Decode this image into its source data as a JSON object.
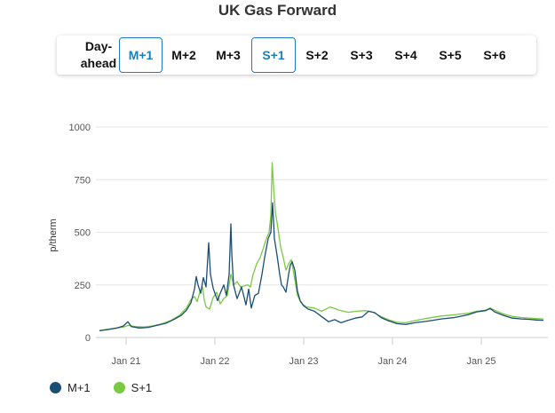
{
  "title": "UK Gas Forward",
  "tabs": [
    {
      "label": "Day-\nahead",
      "active": false
    },
    {
      "label": "M+1",
      "active": true
    },
    {
      "label": "M+2",
      "active": false
    },
    {
      "label": "M+3",
      "active": false
    },
    {
      "label": "S+1",
      "active": true
    },
    {
      "label": "S+2",
      "active": false
    },
    {
      "label": "S+3",
      "active": false
    },
    {
      "label": "S+4",
      "active": false
    },
    {
      "label": "S+5",
      "active": false
    },
    {
      "label": "S+6",
      "active": false
    }
  ],
  "colors": {
    "m1": "#1c4e73",
    "s1": "#7ac943",
    "accent": "#1a7fb8"
  },
  "chart_data": {
    "type": "line",
    "title": "UK Gas Forward",
    "ylabel": "p/therm",
    "xlabel": "",
    "ylim": [
      0,
      1000
    ],
    "yticks": [
      0,
      250,
      500,
      750,
      1000
    ],
    "xlim": [
      2020.66,
      2025.75
    ],
    "xticks": [
      {
        "value": 2021.0,
        "label": "Jan 21"
      },
      {
        "value": 2022.0,
        "label": "Jan 22"
      },
      {
        "value": 2023.0,
        "label": "Jan 23"
      },
      {
        "value": 2024.0,
        "label": "Jan 24"
      },
      {
        "value": 2025.0,
        "label": "Jan 25"
      }
    ],
    "grid": true,
    "legend_position": "bottom-left",
    "series": [
      {
        "name": "M+1",
        "color": "#1c4e73",
        "points": [
          [
            2020.7,
            32
          ],
          [
            2020.8,
            38
          ],
          [
            2020.9,
            45
          ],
          [
            2020.97,
            55
          ],
          [
            2021.02,
            75
          ],
          [
            2021.06,
            52
          ],
          [
            2021.15,
            45
          ],
          [
            2021.25,
            48
          ],
          [
            2021.35,
            58
          ],
          [
            2021.45,
            68
          ],
          [
            2021.55,
            88
          ],
          [
            2021.62,
            105
          ],
          [
            2021.68,
            130
          ],
          [
            2021.73,
            165
          ],
          [
            2021.77,
            230
          ],
          [
            2021.79,
            290
          ],
          [
            2021.81,
            250
          ],
          [
            2021.84,
            210
          ],
          [
            2021.87,
            285
          ],
          [
            2021.9,
            240
          ],
          [
            2021.93,
            450
          ],
          [
            2021.95,
            300
          ],
          [
            2021.98,
            235
          ],
          [
            2022.0,
            210
          ],
          [
            2022.03,
            175
          ],
          [
            2022.06,
            210
          ],
          [
            2022.1,
            250
          ],
          [
            2022.13,
            200
          ],
          [
            2022.16,
            300
          ],
          [
            2022.18,
            540
          ],
          [
            2022.19,
            400
          ],
          [
            2022.21,
            250
          ],
          [
            2022.25,
            185
          ],
          [
            2022.3,
            240
          ],
          [
            2022.35,
            155
          ],
          [
            2022.38,
            230
          ],
          [
            2022.41,
            140
          ],
          [
            2022.45,
            200
          ],
          [
            2022.49,
            210
          ],
          [
            2022.53,
            300
          ],
          [
            2022.56,
            380
          ],
          [
            2022.6,
            470
          ],
          [
            2022.63,
            500
          ],
          [
            2022.65,
            640
          ],
          [
            2022.67,
            470
          ],
          [
            2022.7,
            390
          ],
          [
            2022.73,
            300
          ],
          [
            2022.75,
            250
          ],
          [
            2022.77,
            240
          ],
          [
            2022.8,
            215
          ],
          [
            2022.83,
            300
          ],
          [
            2022.85,
            345
          ],
          [
            2022.87,
            360
          ],
          [
            2022.9,
            320
          ],
          [
            2022.93,
            220
          ],
          [
            2022.96,
            175
          ],
          [
            2023.0,
            150
          ],
          [
            2023.05,
            135
          ],
          [
            2023.12,
            125
          ],
          [
            2023.2,
            100
          ],
          [
            2023.28,
            75
          ],
          [
            2023.35,
            85
          ],
          [
            2023.42,
            70
          ],
          [
            2023.5,
            82
          ],
          [
            2023.58,
            92
          ],
          [
            2023.66,
            98
          ],
          [
            2023.73,
            125
          ],
          [
            2023.8,
            118
          ],
          [
            2023.87,
            95
          ],
          [
            2023.95,
            80
          ],
          [
            2024.05,
            66
          ],
          [
            2024.15,
            62
          ],
          [
            2024.25,
            70
          ],
          [
            2024.4,
            78
          ],
          [
            2024.55,
            88
          ],
          [
            2024.7,
            95
          ],
          [
            2024.85,
            108
          ],
          [
            2024.95,
            122
          ],
          [
            2025.05,
            128
          ],
          [
            2025.1,
            138
          ],
          [
            2025.15,
            122
          ],
          [
            2025.25,
            105
          ],
          [
            2025.35,
            92
          ],
          [
            2025.45,
            88
          ],
          [
            2025.55,
            86
          ],
          [
            2025.62,
            83
          ],
          [
            2025.7,
            82
          ]
        ]
      },
      {
        "name": "S+1",
        "color": "#7ac943",
        "points": [
          [
            2020.7,
            33
          ],
          [
            2020.8,
            40
          ],
          [
            2020.9,
            46
          ],
          [
            2020.97,
            50
          ],
          [
            2021.03,
            58
          ],
          [
            2021.1,
            52
          ],
          [
            2021.2,
            50
          ],
          [
            2021.3,
            55
          ],
          [
            2021.4,
            65
          ],
          [
            2021.5,
            80
          ],
          [
            2021.6,
            105
          ],
          [
            2021.68,
            140
          ],
          [
            2021.73,
            180
          ],
          [
            2021.77,
            195
          ],
          [
            2021.8,
            170
          ],
          [
            2021.83,
            215
          ],
          [
            2021.86,
            240
          ],
          [
            2021.88,
            180
          ],
          [
            2021.9,
            145
          ],
          [
            2021.94,
            135
          ],
          [
            2021.98,
            190
          ],
          [
            2022.02,
            215
          ],
          [
            2022.06,
            160
          ],
          [
            2022.1,
            185
          ],
          [
            2022.14,
            200
          ],
          [
            2022.18,
            300
          ],
          [
            2022.21,
            250
          ],
          [
            2022.25,
            265
          ],
          [
            2022.29,
            240
          ],
          [
            2022.33,
            245
          ],
          [
            2022.37,
            250
          ],
          [
            2022.4,
            240
          ],
          [
            2022.43,
            300
          ],
          [
            2022.47,
            350
          ],
          [
            2022.51,
            380
          ],
          [
            2022.55,
            430
          ],
          [
            2022.58,
            470
          ],
          [
            2022.61,
            500
          ],
          [
            2022.63,
            580
          ],
          [
            2022.645,
            830
          ],
          [
            2022.66,
            720
          ],
          [
            2022.68,
            600
          ],
          [
            2022.71,
            520
          ],
          [
            2022.74,
            430
          ],
          [
            2022.77,
            380
          ],
          [
            2022.8,
            320
          ],
          [
            2022.83,
            350
          ],
          [
            2022.86,
            370
          ],
          [
            2022.89,
            300
          ],
          [
            2022.93,
            200
          ],
          [
            2022.97,
            165
          ],
          [
            2023.03,
            145
          ],
          [
            2023.12,
            140
          ],
          [
            2023.2,
            125
          ],
          [
            2023.3,
            145
          ],
          [
            2023.4,
            130
          ],
          [
            2023.5,
            120
          ],
          [
            2023.6,
            125
          ],
          [
            2023.7,
            128
          ],
          [
            2023.78,
            120
          ],
          [
            2023.86,
            102
          ],
          [
            2023.95,
            85
          ],
          [
            2024.05,
            72
          ],
          [
            2024.15,
            70
          ],
          [
            2024.25,
            80
          ],
          [
            2024.4,
            92
          ],
          [
            2024.55,
            102
          ],
          [
            2024.7,
            108
          ],
          [
            2024.85,
            115
          ],
          [
            2024.95,
            125
          ],
          [
            2025.05,
            130
          ],
          [
            2025.1,
            140
          ],
          [
            2025.15,
            130
          ],
          [
            2025.25,
            112
          ],
          [
            2025.35,
            100
          ],
          [
            2025.45,
            95
          ],
          [
            2025.55,
            92
          ],
          [
            2025.62,
            90
          ],
          [
            2025.7,
            88
          ]
        ]
      }
    ]
  }
}
